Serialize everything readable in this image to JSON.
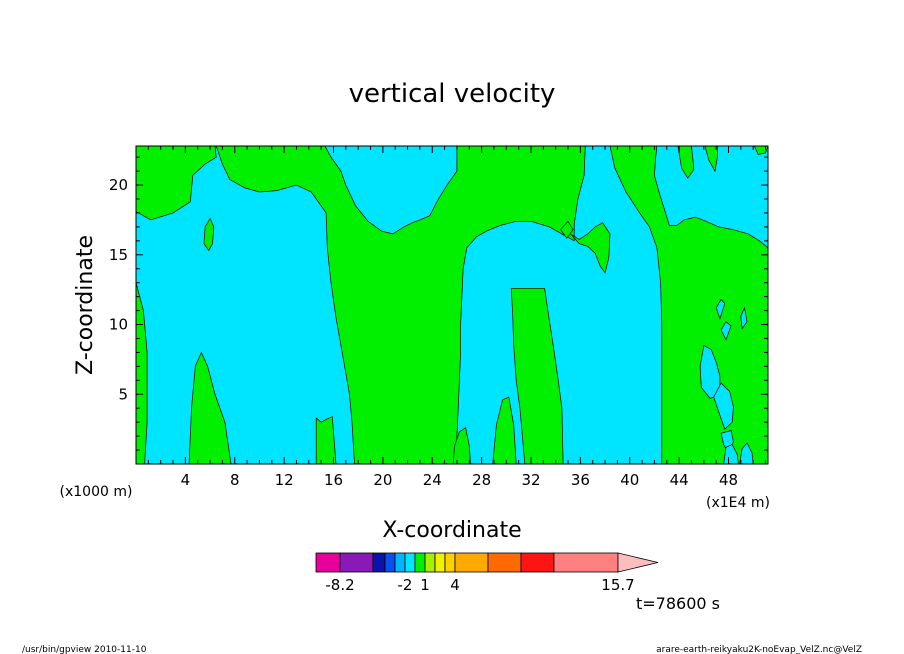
{
  "chart_data": {
    "type": "heatmap",
    "title": "vertical velocity",
    "xlabel": "X-coordinate",
    "ylabel": "Z-coordinate",
    "x_unit_left": "(x1000 m)",
    "x_unit_right": "(x1E4 m)",
    "xlim": [
      0,
      51.2
    ],
    "ylim": [
      0,
      22.8
    ],
    "x_ticks": [
      4,
      8,
      12,
      16,
      20,
      24,
      28,
      32,
      36,
      40,
      44,
      48
    ],
    "y_ticks": [
      5,
      10,
      15,
      20
    ],
    "colors": {
      "negative_region": "#00e5ff",
      "positive_region": "#00f000",
      "frame": "#000000"
    },
    "positive_regions": [
      [
        [
          0,
          13
        ],
        [
          0.6,
          11
        ],
        [
          0.9,
          8
        ],
        [
          0.9,
          3
        ],
        [
          0.7,
          0
        ],
        [
          0,
          0
        ]
      ],
      [
        [
          4.3,
          0
        ],
        [
          4.5,
          4
        ],
        [
          4.8,
          7
        ],
        [
          5.3,
          8
        ],
        [
          5.8,
          7
        ],
        [
          6.4,
          5
        ],
        [
          7.2,
          3
        ],
        [
          7.7,
          0
        ]
      ],
      [
        [
          5.5,
          15.8
        ],
        [
          5.6,
          17
        ],
        [
          6,
          17.6
        ],
        [
          6.3,
          17
        ],
        [
          6.2,
          15.8
        ],
        [
          5.9,
          15.3
        ]
      ],
      [
        [
          14.6,
          0
        ],
        [
          14.6,
          3.3
        ],
        [
          15,
          3
        ],
        [
          15.4,
          3.2
        ],
        [
          15.9,
          3.4
        ],
        [
          16.2,
          0
        ]
      ],
      [
        [
          0,
          22.8
        ],
        [
          0,
          18.1
        ],
        [
          1.2,
          17.5
        ],
        [
          3,
          18
        ],
        [
          4.4,
          18.8
        ],
        [
          4.6,
          20.7
        ],
        [
          5.6,
          21.5
        ],
        [
          6.5,
          22
        ],
        [
          6.4,
          22.8
        ]
      ],
      [
        [
          6.5,
          22.8
        ],
        [
          7,
          21.5
        ],
        [
          7.6,
          20.4
        ],
        [
          8.8,
          19.8
        ],
        [
          10,
          19.5
        ],
        [
          11.4,
          19.6
        ],
        [
          13,
          20
        ],
        [
          14.2,
          19.5
        ],
        [
          15.4,
          18
        ],
        [
          15.5,
          15.5
        ],
        [
          15.8,
          13
        ],
        [
          16.2,
          10.5
        ],
        [
          16.8,
          7.5
        ],
        [
          17.3,
          5
        ],
        [
          17.5,
          3
        ],
        [
          17.7,
          0
        ],
        [
          26,
          0
        ],
        [
          26,
          2
        ],
        [
          26.1,
          4
        ],
        [
          26.2,
          6
        ],
        [
          26.3,
          8
        ],
        [
          26.3,
          10
        ],
        [
          26.4,
          12
        ],
        [
          26.5,
          14
        ],
        [
          26.8,
          15.5
        ],
        [
          27.6,
          16.3
        ],
        [
          28.4,
          16.7
        ],
        [
          29.5,
          17.1
        ],
        [
          30.8,
          17.4
        ],
        [
          32,
          17.4
        ],
        [
          33.5,
          17
        ],
        [
          34.5,
          16.5
        ],
        [
          35.5,
          16
        ],
        [
          35.5,
          17.2
        ],
        [
          35.8,
          19
        ],
        [
          36.3,
          20.7
        ],
        [
          36.4,
          22.8
        ],
        [
          26,
          22.8
        ],
        [
          26,
          21
        ],
        [
          25.2,
          20
        ],
        [
          24.5,
          19
        ],
        [
          23.8,
          17.8
        ],
        [
          23,
          17.5
        ],
        [
          22.4,
          17.3
        ],
        [
          21.7,
          17
        ],
        [
          20.8,
          16.5
        ],
        [
          19.9,
          16.7
        ],
        [
          18.8,
          17.4
        ],
        [
          17.8,
          18.5
        ],
        [
          17,
          20
        ],
        [
          16.6,
          21
        ],
        [
          15.8,
          22
        ],
        [
          15.3,
          22.8
        ]
      ],
      [
        [
          35.2,
          16.5
        ],
        [
          35.9,
          16.1
        ],
        [
          36.6,
          16.5
        ],
        [
          37.2,
          17
        ],
        [
          37.8,
          17.3
        ],
        [
          38.4,
          16.5
        ],
        [
          38.3,
          14.8
        ],
        [
          38,
          13.7
        ],
        [
          37.6,
          14.2
        ],
        [
          37.2,
          15.1
        ],
        [
          36.6,
          15.6
        ],
        [
          35.9,
          15.8
        ]
      ],
      [
        [
          34.4,
          16.8
        ],
        [
          34.9,
          16.2
        ],
        [
          35.4,
          16.8
        ],
        [
          35,
          17.4
        ]
      ],
      [
        [
          38.4,
          22.8
        ],
        [
          38.8,
          21.2
        ],
        [
          39.7,
          19.5
        ],
        [
          40.8,
          18
        ],
        [
          41.6,
          17
        ],
        [
          42.2,
          15.5
        ],
        [
          42.5,
          13
        ],
        [
          42.6,
          10
        ],
        [
          42.6,
          7
        ],
        [
          42.6,
          3.5
        ],
        [
          42.6,
          0
        ],
        [
          51.2,
          0
        ],
        [
          51.2,
          15.5
        ],
        [
          50.5,
          16
        ],
        [
          49.6,
          16.5
        ],
        [
          48.4,
          16.8
        ],
        [
          47.2,
          17
        ],
        [
          46.2,
          17.4
        ],
        [
          45.3,
          17.7
        ],
        [
          44.4,
          17.5
        ],
        [
          43.8,
          17.1
        ],
        [
          43.2,
          17.1
        ],
        [
          42.9,
          18
        ],
        [
          42.4,
          19.4
        ],
        [
          42,
          20.7
        ],
        [
          42.1,
          22
        ],
        [
          42.2,
          22.8
        ]
      ],
      [
        [
          43.9,
          22.8
        ],
        [
          44.2,
          21.2
        ],
        [
          44.7,
          20.5
        ],
        [
          45.2,
          21.1
        ],
        [
          45,
          22.8
        ]
      ],
      [
        [
          46.1,
          22.8
        ],
        [
          46.4,
          21.8
        ],
        [
          46.9,
          21
        ],
        [
          47.1,
          22
        ],
        [
          47.1,
          22.8
        ]
      ],
      [
        [
          50.1,
          22.8
        ],
        [
          50.4,
          22.2
        ],
        [
          51,
          22.3
        ],
        [
          51.2,
          22.8
        ]
      ],
      [
        [
          30.4,
          12.6
        ],
        [
          31,
          12.6
        ],
        [
          32.3,
          12.6
        ],
        [
          33.1,
          12.6
        ],
        [
          33.4,
          10.8
        ],
        [
          33.8,
          8.5
        ],
        [
          34.2,
          6
        ],
        [
          34.5,
          4
        ],
        [
          34.6,
          0
        ],
        [
          31.5,
          0
        ],
        [
          31.3,
          2
        ],
        [
          31.1,
          4
        ],
        [
          30.8,
          6
        ],
        [
          30.6,
          8.5
        ],
        [
          30.5,
          11
        ]
      ],
      [
        [
          25.7,
          0
        ],
        [
          25.8,
          1.3
        ],
        [
          26.2,
          2.3
        ],
        [
          26.7,
          2.6
        ],
        [
          27,
          1.3
        ],
        [
          27.1,
          0
        ]
      ],
      [
        [
          28.9,
          0
        ],
        [
          29.2,
          2.8
        ],
        [
          29.7,
          4.6
        ],
        [
          30.2,
          4.8
        ],
        [
          30.6,
          2.8
        ],
        [
          30.8,
          0
        ]
      ]
    ],
    "negative_islands": [
      [
        [
          47,
          11.2
        ],
        [
          47.3,
          10.4
        ],
        [
          47.7,
          11.5
        ],
        [
          47.4,
          11.8
        ]
      ],
      [
        [
          47.4,
          9.6
        ],
        [
          47.8,
          8.9
        ],
        [
          48.2,
          9.9
        ],
        [
          47.8,
          10.2
        ]
      ],
      [
        [
          46,
          8.5
        ],
        [
          46.6,
          8.2
        ],
        [
          47,
          7.3
        ],
        [
          47.3,
          6.3
        ],
        [
          47.3,
          5
        ],
        [
          46.5,
          4.7
        ],
        [
          45.8,
          5.5
        ],
        [
          45.7,
          7
        ]
      ],
      [
        [
          46.8,
          4.8
        ],
        [
          47.3,
          3.5
        ],
        [
          47.7,
          2.5
        ],
        [
          48.3,
          3
        ],
        [
          48.4,
          4.1
        ],
        [
          48.1,
          5.2
        ],
        [
          47.4,
          5.8
        ]
      ],
      [
        [
          47.4,
          2.2
        ],
        [
          47.6,
          1.4
        ],
        [
          48,
          0.8
        ],
        [
          48.4,
          1.6
        ],
        [
          48.2,
          2.4
        ]
      ],
      [
        [
          47.6,
          0
        ],
        [
          47.8,
          1.2
        ],
        [
          48.3,
          1.4
        ],
        [
          48.7,
          0.7
        ],
        [
          48.8,
          0
        ]
      ],
      [
        [
          49,
          10.6
        ],
        [
          49.3,
          11.2
        ],
        [
          49.5,
          10.2
        ],
        [
          49.1,
          9.7
        ]
      ],
      [
        [
          48.9,
          0
        ],
        [
          49.1,
          1.1
        ],
        [
          49.5,
          1.5
        ],
        [
          49.9,
          0.8
        ],
        [
          50,
          0
        ]
      ]
    ],
    "colorbar": {
      "colors": [
        "#e6009a",
        "#8a1ab8",
        "#0a14a8",
        "#0a50f0",
        "#00b4ff",
        "#00e5ff",
        "#00f000",
        "#a8f000",
        "#f0f000",
        "#ffd000",
        "#ffaa00",
        "#ff6a00",
        "#ff1414",
        "#ff8080",
        "#ffbcbc"
      ],
      "labels": [
        {
          "label": "-8.2",
          "after": 0
        },
        {
          "label": "-2",
          "after": 4
        },
        {
          "label": "1",
          "after": 6
        },
        {
          "label": "4",
          "after": 9
        },
        {
          "label": "15.7",
          "after": 14
        }
      ]
    },
    "time_label": "t=78600 s"
  },
  "footer": {
    "left": "/usr/bin/gpview   2010-11-10",
    "right": "arare-earth-reikyaku2K-noEvap_VelZ.nc@VelZ"
  }
}
